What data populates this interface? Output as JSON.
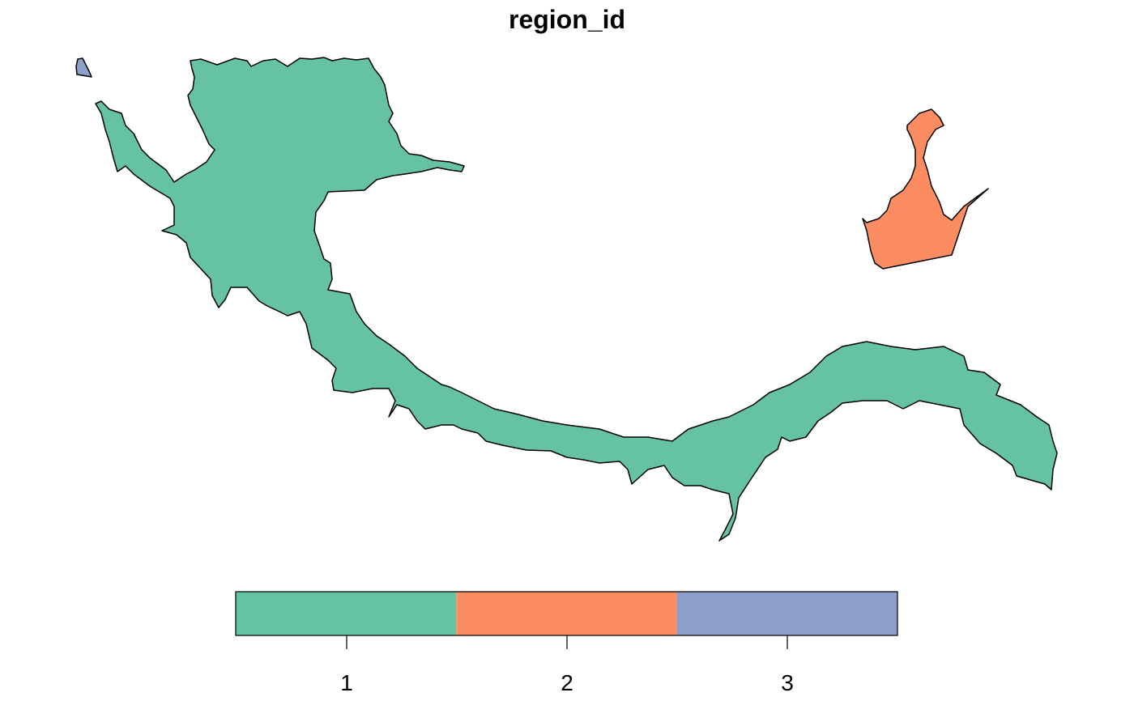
{
  "title": "region_id",
  "chart_data": {
    "type": "choropleth-map",
    "title": "region_id",
    "regions": [
      {
        "region_id": 1,
        "color": "#66C2A5"
      },
      {
        "region_id": 2,
        "color": "#FC8D62"
      },
      {
        "region_id": 3,
        "color": "#8DA0CB"
      }
    ],
    "legend": {
      "placement": "bottom",
      "categories": [
        "1",
        "2",
        "3"
      ],
      "colors": [
        "#66C2A5",
        "#FC8D62",
        "#8DA0CB"
      ]
    }
  }
}
